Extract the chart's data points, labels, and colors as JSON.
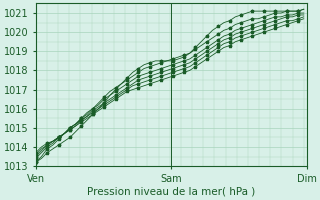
{
  "title": "",
  "xlabel": "Pression niveau de la mer( hPa )",
  "ylabel": "",
  "ylim": [
    1013,
    1021.5
  ],
  "yticks": [
    1013,
    1014,
    1015,
    1016,
    1017,
    1018,
    1019,
    1020,
    1021
  ],
  "xtick_labels": [
    "Ven",
    "Sam",
    "Dim"
  ],
  "xtick_positions": [
    0,
    48,
    96
  ],
  "x_total": 96,
  "bg_color": "#d8f0e8",
  "grid_color": "#a8d4bc",
  "line_color": "#1a5c28",
  "marker": "*",
  "marker_size": 2.5,
  "linewidth": 0.6,
  "lines": [
    [
      1013.2,
      1013.5,
      1013.9,
      1014.1,
      1014.4,
      1014.7,
      1015.0,
      1015.2,
      1015.5,
      1015.8,
      1016.0,
      1016.3,
      1016.6,
      1016.9,
      1017.1,
      1017.3,
      1017.5,
      1017.7,
      1017.9,
      1018.1,
      1018.2,
      1018.3,
      1018.4,
      1018.5,
      1018.6,
      1018.7,
      1018.8,
      1018.9,
      1019.1,
      1019.3,
      1019.5,
      1019.7,
      1019.9,
      1020.1,
      1020.2,
      1020.4,
      1020.5,
      1020.6,
      1020.7,
      1020.7,
      1020.8,
      1020.9,
      1021.0,
      1021.0,
      1021.1,
      1021.1,
      1021.1,
      1021.2
    ],
    [
      1013.4,
      1013.7,
      1014.0,
      1014.2,
      1014.5,
      1014.7,
      1015.0,
      1015.2,
      1015.5,
      1015.7,
      1016.0,
      1016.2,
      1016.5,
      1016.7,
      1016.9,
      1017.1,
      1017.3,
      1017.5,
      1017.7,
      1017.8,
      1017.9,
      1018.0,
      1018.1,
      1018.2,
      1018.3,
      1018.4,
      1018.5,
      1018.6,
      1018.8,
      1019.0,
      1019.2,
      1019.4,
      1019.6,
      1019.8,
      1019.9,
      1020.1,
      1020.2,
      1020.3,
      1020.4,
      1020.5,
      1020.6,
      1020.7,
      1020.8,
      1020.8,
      1020.9,
      1020.9,
      1021.0,
      1021.0
    ],
    [
      1013.5,
      1013.8,
      1014.1,
      1014.3,
      1014.5,
      1014.7,
      1015.0,
      1015.2,
      1015.4,
      1015.6,
      1015.9,
      1016.1,
      1016.3,
      1016.5,
      1016.7,
      1016.9,
      1017.1,
      1017.3,
      1017.5,
      1017.6,
      1017.7,
      1017.8,
      1017.9,
      1018.0,
      1018.1,
      1018.2,
      1018.3,
      1018.4,
      1018.6,
      1018.8,
      1019.0,
      1019.2,
      1019.4,
      1019.6,
      1019.7,
      1019.9,
      1020.0,
      1020.1,
      1020.2,
      1020.3,
      1020.4,
      1020.5,
      1020.6,
      1020.7,
      1020.8,
      1020.8,
      1020.9,
      1020.9
    ],
    [
      1013.6,
      1013.9,
      1014.1,
      1014.3,
      1014.5,
      1014.7,
      1014.9,
      1015.1,
      1015.4,
      1015.6,
      1015.8,
      1016.0,
      1016.2,
      1016.4,
      1016.6,
      1016.8,
      1017.0,
      1017.2,
      1017.3,
      1017.4,
      1017.5,
      1017.6,
      1017.7,
      1017.8,
      1017.9,
      1018.0,
      1018.1,
      1018.2,
      1018.4,
      1018.6,
      1018.8,
      1019.0,
      1019.2,
      1019.4,
      1019.5,
      1019.7,
      1019.8,
      1019.9,
      1020.0,
      1020.1,
      1020.2,
      1020.3,
      1020.4,
      1020.5,
      1020.6,
      1020.6,
      1020.7,
      1020.8
    ],
    [
      1013.7,
      1014.0,
      1014.2,
      1014.3,
      1014.5,
      1014.7,
      1014.9,
      1015.1,
      1015.3,
      1015.5,
      1015.7,
      1015.9,
      1016.1,
      1016.3,
      1016.5,
      1016.7,
      1016.9,
      1017.0,
      1017.1,
      1017.2,
      1017.3,
      1017.4,
      1017.5,
      1017.6,
      1017.7,
      1017.8,
      1017.9,
      1018.0,
      1018.2,
      1018.4,
      1018.6,
      1018.8,
      1019.0,
      1019.2,
      1019.3,
      1019.5,
      1019.6,
      1019.7,
      1019.8,
      1019.9,
      1020.0,
      1020.1,
      1020.2,
      1020.3,
      1020.4,
      1020.5,
      1020.6,
      1020.7
    ]
  ],
  "line_top": [
    1013.2,
    1013.4,
    1013.7,
    1013.9,
    1014.1,
    1014.3,
    1014.5,
    1014.8,
    1015.1,
    1015.4,
    1015.7,
    1016.0,
    1016.3,
    1016.7,
    1017.0,
    1017.3,
    1017.6,
    1017.9,
    1018.1,
    1018.3,
    1018.4,
    1018.5,
    1018.5,
    1018.5,
    1018.5,
    1018.6,
    1018.7,
    1018.9,
    1019.2,
    1019.5,
    1019.8,
    1020.1,
    1020.3,
    1020.5,
    1020.6,
    1020.8,
    1020.9,
    1021.0,
    1021.1,
    1021.1,
    1021.1,
    1021.1,
    1021.1,
    1021.1,
    1021.1,
    1021.1,
    1021.1,
    1021.2
  ]
}
